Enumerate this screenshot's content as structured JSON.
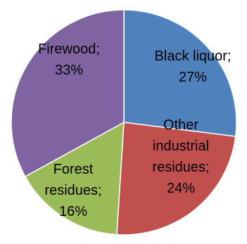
{
  "chart_data": {
    "type": "pie",
    "slices": [
      {
        "label_lines": [
          "Black liquor;",
          "27%"
        ],
        "value": 27,
        "color": "#4f81bd"
      },
      {
        "label_lines": [
          "Other",
          "industrial",
          "residues;",
          "24%"
        ],
        "value": 24,
        "color": "#c0504d"
      },
      {
        "label_lines": [
          "Forest",
          "residues;",
          "16%"
        ],
        "value": 16,
        "color": "#9bbb59"
      },
      {
        "label_lines": [
          "Firewood;",
          "33%"
        ],
        "value": 33,
        "color": "#8064a2"
      }
    ],
    "start_angle_deg": 0,
    "direction": "clockwise",
    "legend": "none"
  }
}
